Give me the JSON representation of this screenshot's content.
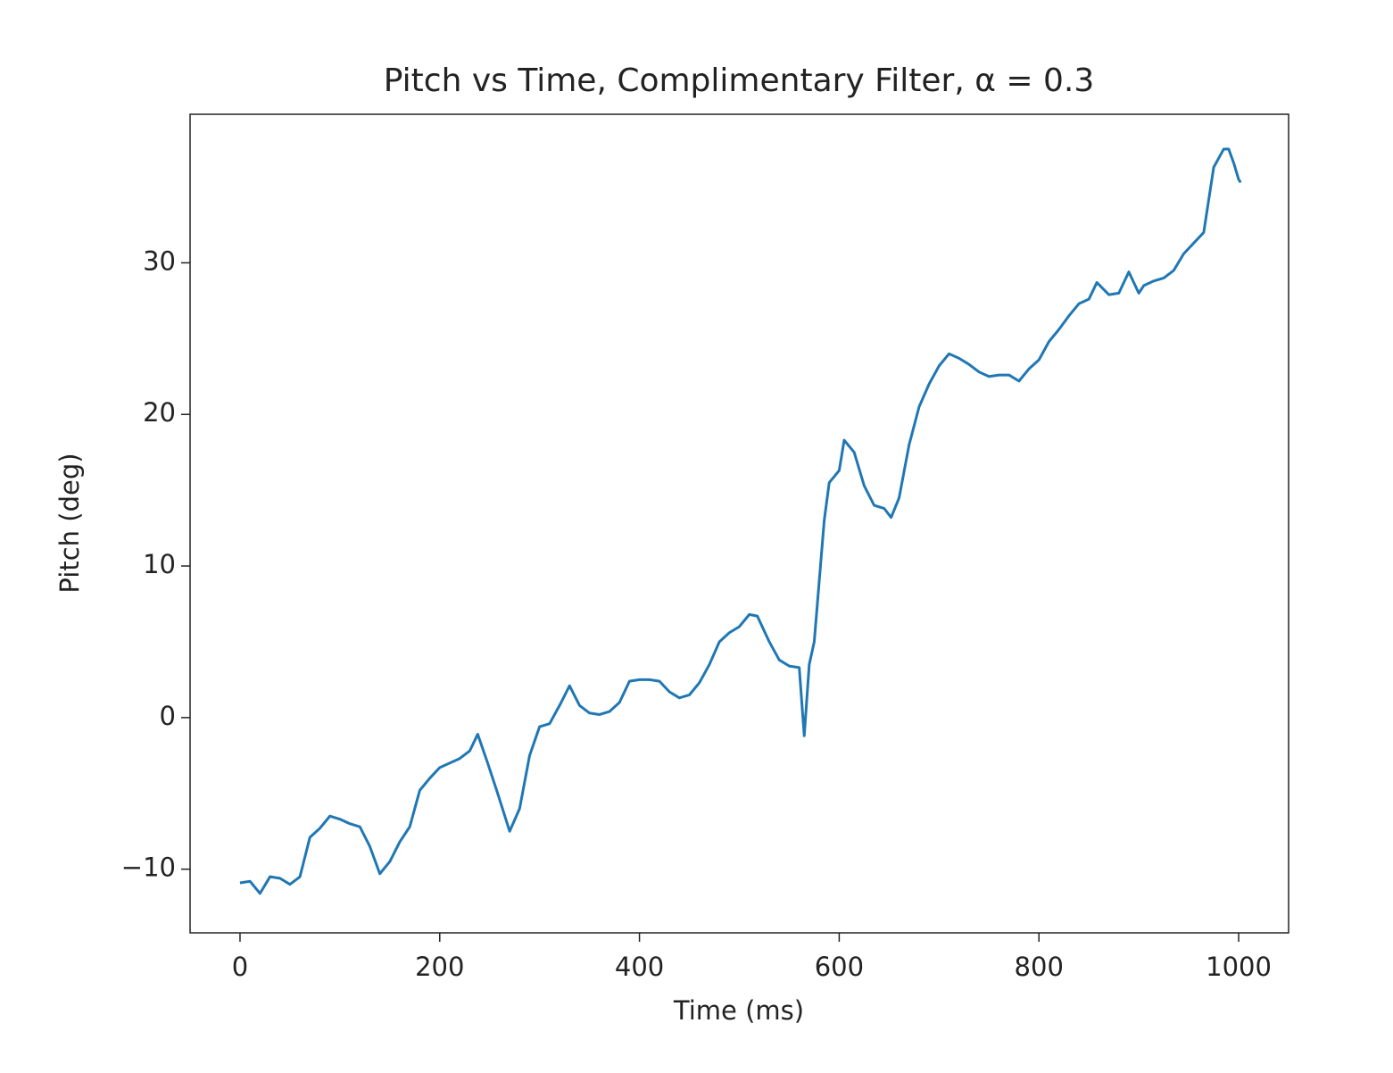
{
  "chart_data": {
    "type": "line",
    "title": "Pitch vs Time, Complimentary Filter, α = 0.3",
    "xlabel": "Time (ms)",
    "ylabel": "Pitch (deg)",
    "x": [
      0,
      10,
      20,
      30,
      40,
      50,
      60,
      70,
      80,
      90,
      100,
      110,
      120,
      130,
      140,
      150,
      160,
      170,
      180,
      190,
      200,
      210,
      220,
      230,
      238,
      248,
      258,
      270,
      280,
      290,
      300,
      310,
      320,
      330,
      340,
      350,
      360,
      370,
      380,
      390,
      400,
      410,
      420,
      430,
      440,
      450,
      460,
      470,
      480,
      490,
      500,
      510,
      518,
      530,
      540,
      550,
      560,
      565,
      570,
      575,
      580,
      585,
      590,
      600,
      605,
      615,
      625,
      635,
      645,
      652,
      660,
      670,
      680,
      690,
      700,
      710,
      720,
      730,
      740,
      750,
      760,
      770,
      780,
      790,
      800,
      810,
      820,
      830,
      840,
      850,
      858,
      870,
      880,
      890,
      900,
      905,
      915,
      925,
      935,
      945,
      955,
      965,
      975,
      985,
      990,
      995,
      1000,
      1002
    ],
    "series": [
      {
        "name": "pitch",
        "color": "#1f77b4",
        "values": [
          -10.9,
          -10.8,
          -11.6,
          -10.5,
          -10.6,
          -11.0,
          -10.5,
          -7.9,
          -7.3,
          -6.5,
          -6.7,
          -7.0,
          -7.2,
          -8.5,
          -10.3,
          -9.5,
          -8.2,
          -7.2,
          -4.8,
          -4.0,
          -3.3,
          -3.0,
          -2.7,
          -2.2,
          -1.1,
          -3.0,
          -5.0,
          -7.5,
          -6.0,
          -2.5,
          -0.6,
          -0.4,
          0.8,
          2.1,
          0.8,
          0.3,
          0.2,
          0.4,
          1.0,
          2.4,
          2.5,
          2.5,
          2.4,
          1.7,
          1.3,
          1.5,
          2.3,
          3.5,
          5.0,
          5.6,
          6.0,
          6.8,
          6.7,
          5.0,
          3.8,
          3.4,
          3.3,
          -1.2,
          3.5,
          5.0,
          9.0,
          13.0,
          15.5,
          16.3,
          18.3,
          17.5,
          15.3,
          14.0,
          13.8,
          13.2,
          14.5,
          18.0,
          20.5,
          22.0,
          23.2,
          24.0,
          23.7,
          23.3,
          22.8,
          22.5,
          22.6,
          22.6,
          22.2,
          23.0,
          23.6,
          24.8,
          25.6,
          26.5,
          27.3,
          27.6,
          28.7,
          27.9,
          28.0,
          29.4,
          28.0,
          28.5,
          28.8,
          29.0,
          29.5,
          30.6,
          31.3,
          32.0,
          36.3,
          37.5,
          37.5,
          36.6,
          35.5,
          35.3
        ]
      }
    ],
    "xlim": [
      -50,
      1050
    ],
    "ylim": [
      -14.2,
      39.8
    ],
    "xticks": [
      0,
      200,
      400,
      600,
      800,
      1000
    ],
    "yticks": [
      {
        "value": -10,
        "label": "−10"
      },
      0,
      10,
      20,
      30
    ],
    "grid": false
  }
}
